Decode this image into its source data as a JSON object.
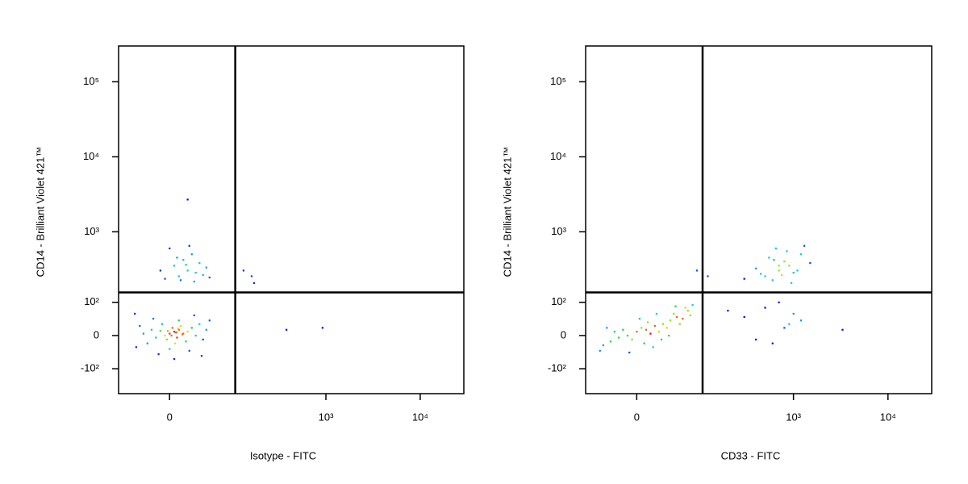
{
  "chart_data": [
    {
      "type": "scatter",
      "scale": "biexponential",
      "xlabel": "Isotype - FITC",
      "ylabel": "CD14 - Brilliant Violet 421™",
      "xlim": [
        -70,
        29000
      ],
      "ylim": [
        -240,
        300000
      ],
      "xticks": [
        0,
        {
          "value": 1000,
          "label": "10³"
        },
        {
          "value": 10000,
          "label": "10⁴"
        }
      ],
      "yticks": [
        {
          "value": -100,
          "label": "-10²"
        },
        0,
        {
          "value": 100,
          "label": "10²"
        },
        {
          "value": 1000,
          "label": "10³"
        },
        {
          "value": 10000,
          "label": "10⁴"
        },
        {
          "value": 100000,
          "label": "10⁵"
        }
      ],
      "gates": {
        "x": 105,
        "y": 145
      },
      "x": [
        0,
        5,
        -5,
        10,
        8,
        -10,
        15,
        3,
        -3,
        12,
        20,
        -15,
        25,
        -20,
        6,
        30,
        -8,
        18,
        -25,
        35,
        -30,
        40,
        10,
        0,
        -35,
        45,
        22,
        -12,
        50,
        -40,
        28,
        -18,
        5,
        38,
        -42,
        2,
        7,
        -2,
        14,
        9,
        10,
        20,
        5,
        30,
        15,
        -5,
        25,
        40,
        0,
        35,
        12,
        45,
        -10,
        22,
        8,
        50,
        18,
        28,
        130,
        160,
        170,
        380,
        920,
        20
      ],
      "values": [
        5,
        10,
        0,
        15,
        -5,
        12,
        5,
        20,
        -10,
        25,
        10,
        -5,
        20,
        15,
        -20,
        0,
        30,
        -15,
        -20,
        30,
        5,
        -10,
        40,
        -35,
        25,
        15,
        -40,
        -50,
        40,
        -30,
        55,
        45,
        -65,
        -55,
        60,
        0,
        8,
        12,
        3,
        18,
        250,
        300,
        350,
        280,
        420,
        230,
        500,
        260,
        600,
        380,
        220,
        330,
        300,
        650,
        450,
        240,
        360,
        210,
        300,
        250,
        200,
        15,
        20,
        2700
      ]
    },
    {
      "type": "scatter",
      "scale": "biexponential",
      "xlabel": "CD33 - FITC",
      "ylabel": "CD14 - Brilliant Violet 421™",
      "xlim": [
        -70,
        29000
      ],
      "ylim": [
        -240,
        300000
      ],
      "xticks": [
        0,
        {
          "value": 1000,
          "label": "10³"
        },
        {
          "value": 10000,
          "label": "10⁴"
        }
      ],
      "yticks": [
        {
          "value": -100,
          "label": "-10²"
        },
        0,
        {
          "value": 100,
          "label": "10²"
        },
        {
          "value": 1000,
          "label": "10³"
        },
        {
          "value": 10000,
          "label": "10⁴"
        },
        {
          "value": 100000,
          "label": "10⁵"
        }
      ],
      "gates": {
        "x": 105,
        "y": 145
      },
      "x": [
        0,
        10,
        -10,
        20,
        30,
        -20,
        40,
        15,
        5,
        -5,
        25,
        50,
        -30,
        60,
        35,
        -15,
        45,
        8,
        70,
        -40,
        55,
        12,
        28,
        65,
        -25,
        3,
        38,
        75,
        -45,
        18,
        80,
        -8,
        48,
        22,
        -35,
        500,
        700,
        900,
        600,
        800,
        1000,
        400,
        1200,
        650,
        750,
        550,
        950,
        1500,
        300,
        850,
        700,
        1100,
        450,
        1300,
        620,
        300,
        500,
        800,
        1000,
        400,
        700,
        200,
        900,
        600,
        1200,
        3300,
        90,
        120
      ],
      "values": [
        10,
        15,
        0,
        25,
        30,
        -5,
        40,
        5,
        20,
        -10,
        10,
        50,
        -15,
        45,
        20,
        15,
        60,
        -20,
        70,
        -25,
        30,
        35,
        -10,
        80,
        10,
        45,
        0,
        55,
        -40,
        -30,
        90,
        -45,
        85,
        60,
        20,
        250,
        300,
        350,
        220,
        400,
        280,
        320,
        500,
        600,
        260,
        450,
        200,
        380,
        230,
        550,
        350,
        300,
        270,
        650,
        420,
        50,
        80,
        20,
        60,
        -10,
        100,
        70,
        30,
        -20,
        40,
        15,
        300,
        250
      ]
    }
  ]
}
